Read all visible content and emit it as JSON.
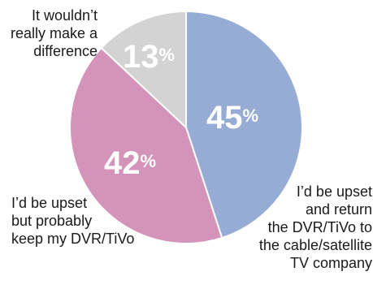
{
  "chart_data": {
    "type": "pie",
    "slices": [
      {
        "label": [
          "I’d be upset",
          "and return",
          "the DVR/TiVo to",
          "the cable/satellite",
          "TV company"
        ],
        "value": 45,
        "display": "45",
        "color": "#97acd4"
      },
      {
        "label": [
          "I’d be upset",
          "but probably",
          "keep my DVR/TiVo"
        ],
        "value": 42,
        "display": "42",
        "color": "#d493b8"
      },
      {
        "label": [
          "It wouldn’t",
          "really make a",
          "difference"
        ],
        "value": 13,
        "display": "13",
        "color": "#d3d3d3"
      }
    ],
    "percent_symbol": "%"
  }
}
